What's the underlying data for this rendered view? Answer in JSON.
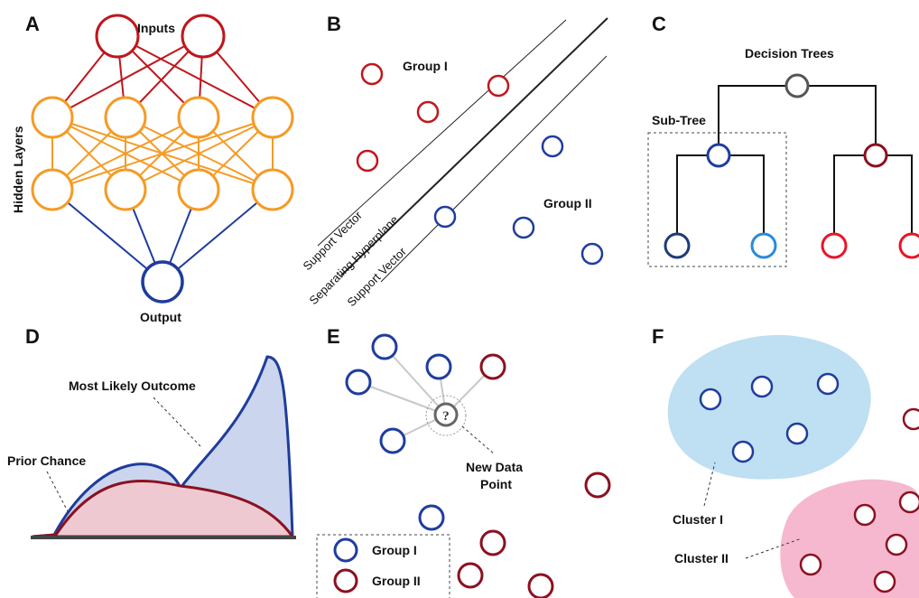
{
  "panels": {
    "a": {
      "letter": "A",
      "inputs_label": "Inputs",
      "hidden_label": "Hidden Layers",
      "output_label": "Output"
    },
    "b": {
      "letter": "B",
      "group1_label": "Group I",
      "group2_label": "Group II",
      "support_vector_upper": "Support Vector",
      "hyperplane_label": "Separating Hyperplane",
      "support_vector_lower": "Support Vector"
    },
    "c": {
      "letter": "C",
      "title": "Decision Trees",
      "subtree_label": "Sub-Tree"
    },
    "d": {
      "letter": "D",
      "likely_label": "Most Likely Outcome",
      "prior_label": "Prior Chance"
    },
    "e": {
      "letter": "E",
      "unknown_mark": "?",
      "new_point_line1": "New Data",
      "new_point_line2": "Point",
      "legend_group1": "Group I",
      "legend_group2": "Group II"
    },
    "f": {
      "letter": "F",
      "cluster1_label": "Cluster I",
      "cluster2_label": "Cluster II"
    }
  },
  "colors": {
    "input_red": "#c0161c",
    "hidden_orange": "#f59b25",
    "output_blue": "#1f3c9c",
    "group_red": "#c0161c",
    "group_blue": "#1f3ca0",
    "node_gray": "#555555",
    "dark_red": "#8c1020",
    "navy": "#1f3a7a",
    "light_blue": "#2a8ad8",
    "bright_red": "#e8152a",
    "curve_blue_fill": "#cbd5ee",
    "curve_red_fill": "#efc9d2",
    "cluster1_fill": "#bfdff2",
    "cluster2_fill": "#f6b8cf"
  }
}
